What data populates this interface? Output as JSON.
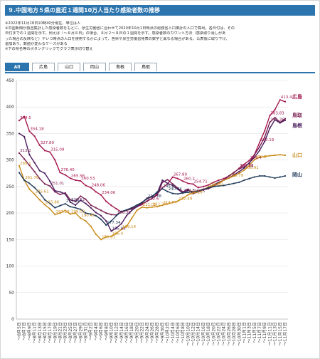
{
  "page": {
    "title": "９.中国地方５県の直近１週間10万人当たり感染者数の推移",
    "notes": [
      "※2022年11月18日10時40分現在、単位は人",
      "※中国新聞が独自集計した感染者数をもとに、厚生労働省に合わせて2020年10月1日時点の総務省人口推計の人口で算出。各日付は、その",
      "日付までの１週間を示す。例えば「～８月８日」の場合、８月２～８日の１週間を示す。感染者数のカウント方法（感染取り消しがあ",
      "った場合の反映など）やいつ時点の人口を使用するかによって、各県や厚生労働省発表の数字と異なる場合がある。公表後に取り下げ、",
      "追加あり、数値が変わるケースがある",
      "※下の県名等のボタンクリックでグラフ表示切り替え"
    ],
    "tabs": [
      "All",
      "広島",
      "山口",
      "岡山",
      "島根",
      "鳥取"
    ],
    "active_tab": "All"
  },
  "chart_data": {
    "type": "line",
    "ylim": [
      0,
      450
    ],
    "yticks": [
      0,
      50,
      100,
      150,
      200,
      250,
      300,
      350,
      400,
      450
    ],
    "x": [
      "～8月5日",
      "～8月7日",
      "～8月9日",
      "～8月11日",
      "～8月13日",
      "～8月15日",
      "～8月17日",
      "～8月19日",
      "～8月21日",
      "～8月23日",
      "～8月25日",
      "～8月27日",
      "～8月29日",
      "～8月31日",
      "～9月2日",
      "～9月4日",
      "～9月6日",
      "～9月8日",
      "～9月10日",
      "～9月12日",
      "～9月14日",
      "～9月16日",
      "～9月18日",
      "～9月20日",
      "～9月22日",
      "～9月24日",
      "～9月26日",
      "～9月28日",
      "～9月30日",
      "～10月2日",
      "～10月4日",
      "～10月6日",
      "～10月8日",
      "～10月10日",
      "～10月12日",
      "～10月14日",
      "～10月16日",
      "～10月18日",
      "～10月20日",
      "～10月22日",
      "～10月24日",
      "～10月26日",
      "～10月28日",
      "～10月30日",
      "～11月1日",
      "～11月3日",
      "～11月5日",
      "～11月7日",
      "～11月9日",
      "～11月11日",
      "～11月13日",
      "～11月15日",
      "～11月17日"
    ],
    "series": [
      {
        "name": "広島",
        "color": "#a5174f",
        "values": [
          374.5,
          382,
          354.18,
          345,
          327.89,
          318,
          315.09,
          300,
          276.4,
          272,
          265.56,
          262,
          260.53,
          252,
          248.06,
          240,
          234.06,
          222,
          214.4,
          208,
          202,
          205,
          210,
          212,
          216,
          222.6,
          228,
          236,
          248,
          255,
          267.89,
          265,
          260.2,
          256,
          254.71,
          248,
          250,
          253,
          258,
          262,
          265,
          270,
          276,
          284.53,
          292,
          299.4,
          310,
          333.19,
          355,
          383.83,
          395,
          413.4,
          410
        ]
      },
      {
        "name": "鳥取",
        "color": "#7a2052",
        "values": [
          313.2,
          302,
          290,
          278,
          265,
          255,
          251.01,
          240,
          235,
          238,
          225,
          222,
          232,
          226,
          215,
          210,
          205,
          200,
          197,
          196.36,
          203,
          205,
          208,
          212,
          218,
          222,
          228,
          234,
          258,
          263,
          255,
          247,
          240,
          245,
          236.5,
          240,
          244,
          246,
          250,
          256,
          262,
          270,
          277,
          283.26,
          287,
          294,
          310,
          325,
          343,
          371.26,
          380,
          371,
          378
        ]
      },
      {
        "name": "島根",
        "color": "#4a1d5e",
        "values": [
          350,
          344,
          310,
          295,
          280,
          275,
          260,
          242,
          240,
          236,
          220.52,
          215,
          224,
          218,
          210,
          201,
          195,
          185,
          165.83,
          172,
          180,
          195,
          205,
          212,
          220,
          228,
          232,
          238,
          262,
          256,
          252,
          245,
          237.5,
          243,
          240,
          242,
          245,
          248,
          253,
          258,
          262,
          266,
          272,
          278,
          285,
          295,
          305,
          318,
          335,
          360,
          376,
          370,
          375
        ]
      },
      {
        "name": "山口",
        "color": "#c98a1a",
        "values": [
          289.1,
          261.76,
          245,
          235.61,
          225,
          215.86,
          208,
          197.23,
          200,
          205,
          198.03,
          200,
          190.45,
          185,
          175,
          160,
          150.07,
          155,
          156.4,
          162,
          169.14,
          175,
          190,
          205,
          211.09,
          210,
          211.24,
          212,
          214.74,
          217,
          220,
          222.49,
          228,
          234.19,
          238,
          240,
          244,
          249.39,
          252,
          256,
          262,
          265.79,
          270,
          275,
          280.91,
          290,
          300.8,
          305,
          307,
          308,
          309,
          310,
          309
        ]
      },
      {
        "name": "岡山",
        "color": "#1f3a5a",
        "values": [
          276,
          262,
          256,
          248,
          238,
          225,
          218,
          210,
          214,
          217.54,
          212,
          210,
          207,
          200,
          198,
          195,
          188,
          177.34,
          185,
          195,
          203,
          206,
          210,
          215,
          220,
          226.78,
          231,
          240,
          245.8,
          240.64,
          237,
          236,
          238,
          239,
          240,
          242,
          244,
          248,
          250,
          251,
          252,
          254,
          256,
          258,
          262,
          265,
          268,
          270,
          270,
          268,
          266,
          268,
          270
        ]
      }
    ],
    "data_labels": [
      {
        "s": 0,
        "i": 0,
        "t": "374.5"
      },
      {
        "s": 0,
        "i": 2,
        "t": "354.18"
      },
      {
        "s": 0,
        "i": 4,
        "t": "327.89"
      },
      {
        "s": 0,
        "i": 6,
        "t": "315.09"
      },
      {
        "s": 0,
        "i": 8,
        "t": "276.40"
      },
      {
        "s": 0,
        "i": 10,
        "t": "265.56"
      },
      {
        "s": 0,
        "i": 12,
        "t": "260.53"
      },
      {
        "s": 0,
        "i": 14,
        "t": "248.06"
      },
      {
        "s": 0,
        "i": 16,
        "t": "234.06"
      },
      {
        "s": 0,
        "i": 25,
        "t": "222.6"
      },
      {
        "s": 0,
        "i": 30,
        "t": "267.89"
      },
      {
        "s": 0,
        "i": 32,
        "t": "260.2"
      },
      {
        "s": 0,
        "i": 34,
        "t": "254.71"
      },
      {
        "s": 0,
        "i": 43,
        "t": "284.53"
      },
      {
        "s": 0,
        "i": 45,
        "t": "299.4"
      },
      {
        "s": 0,
        "i": 47,
        "t": "333.19"
      },
      {
        "s": 0,
        "i": 49,
        "t": "383.83"
      },
      {
        "s": 0,
        "i": 51,
        "t": "413.4"
      },
      {
        "s": 1,
        "i": 0,
        "t": "313.2"
      },
      {
        "s": 1,
        "i": 6,
        "t": "251.01"
      },
      {
        "s": 1,
        "i": 19,
        "t": "196.36"
      },
      {
        "s": 1,
        "i": 34,
        "t": "236.5"
      },
      {
        "s": 1,
        "i": 43,
        "t": "283.26"
      },
      {
        "s": 1,
        "i": 49,
        "t": "371.26"
      },
      {
        "s": 2,
        "i": 10,
        "t": "220.52"
      },
      {
        "s": 2,
        "i": 18,
        "t": "165.83"
      },
      {
        "s": 2,
        "i": 32,
        "t": "237.5"
      },
      {
        "s": 3,
        "i": 0,
        "t": "289.1"
      },
      {
        "s": 3,
        "i": 1,
        "t": "261.76"
      },
      {
        "s": 3,
        "i": 3,
        "t": "235.61"
      },
      {
        "s": 3,
        "i": 5,
        "t": "215.86"
      },
      {
        "s": 3,
        "i": 7,
        "t": "197.23"
      },
      {
        "s": 3,
        "i": 10,
        "t": "198.03"
      },
      {
        "s": 3,
        "i": 12,
        "t": "190.45"
      },
      {
        "s": 3,
        "i": 16,
        "t": "150.07"
      },
      {
        "s": 3,
        "i": 18,
        "t": "156.4"
      },
      {
        "s": 3,
        "i": 20,
        "t": "169.14"
      },
      {
        "s": 3,
        "i": 24,
        "t": "211.09"
      },
      {
        "s": 3,
        "i": 26,
        "t": "211.24"
      },
      {
        "s": 3,
        "i": 28,
        "t": "214.74"
      },
      {
        "s": 3,
        "i": 31,
        "t": "222.49"
      },
      {
        "s": 3,
        "i": 33,
        "t": "234.19"
      },
      {
        "s": 3,
        "i": 37,
        "t": "249.39"
      },
      {
        "s": 3,
        "i": 41,
        "t": "265.79"
      },
      {
        "s": 3,
        "i": 44,
        "t": "280.91"
      },
      {
        "s": 3,
        "i": 46,
        "t": "300.8"
      },
      {
        "s": 4,
        "i": 9,
        "t": "217.54"
      },
      {
        "s": 4,
        "i": 17,
        "t": "177.34"
      },
      {
        "s": 4,
        "i": 25,
        "t": "226.78"
      },
      {
        "s": 4,
        "i": 28,
        "t": "245.8"
      },
      {
        "s": 4,
        "i": 29,
        "t": "240.64"
      }
    ],
    "end_labels": [
      "広島",
      "鳥取",
      "島根",
      "山口",
      "岡山"
    ]
  }
}
